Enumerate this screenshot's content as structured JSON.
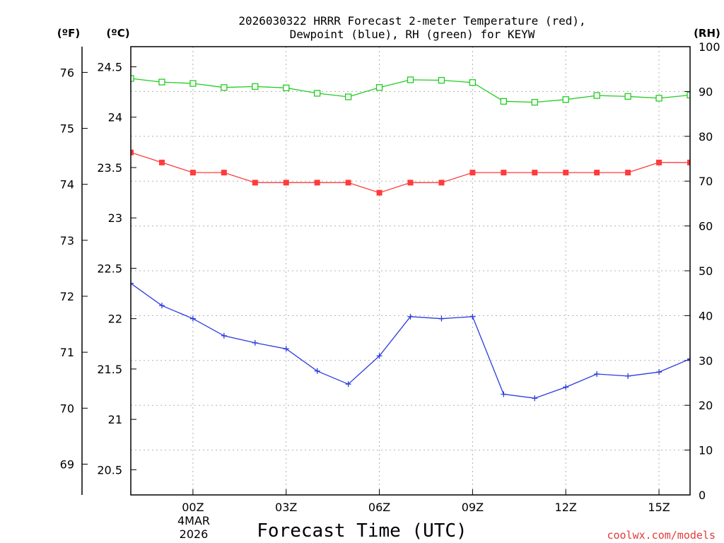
{
  "chart_data": {
    "type": "line",
    "title_line1": "2026030322 HRRR Forecast 2-meter Temperature (red),",
    "title_line2": "Dewpoint (blue), RH (green) for KEYW",
    "unit_f": "(ºF)",
    "unit_c": "(ºC)",
    "unit_rh": "(RH)",
    "xlabel": "Forecast Time (UTC)",
    "watermark": "coolwx.com/models",
    "date_label_day": "4MAR",
    "date_label_year": "2026",
    "x_range": [
      -2,
      16
    ],
    "c_range": [
      20.25,
      24.7
    ],
    "f_range": [
      68.45,
      76.46
    ],
    "rh_range": [
      0,
      100
    ],
    "x_ticks": [
      {
        "x": 0,
        "label": "00Z"
      },
      {
        "x": 3,
        "label": "03Z"
      },
      {
        "x": 6,
        "label": "06Z"
      },
      {
        "x": 9,
        "label": "09Z"
      },
      {
        "x": 12,
        "label": "12Z"
      },
      {
        "x": 15,
        "label": "15Z"
      }
    ],
    "c_ticks": [
      {
        "v": 20.5,
        "label": "20.5"
      },
      {
        "v": 21,
        "label": "21"
      },
      {
        "v": 21.5,
        "label": "21.5"
      },
      {
        "v": 22,
        "label": "22"
      },
      {
        "v": 22.5,
        "label": "22.5"
      },
      {
        "v": 23,
        "label": "23"
      },
      {
        "v": 23.5,
        "label": "23.5"
      },
      {
        "v": 24,
        "label": "24"
      },
      {
        "v": 24.5,
        "label": "24.5"
      }
    ],
    "f_ticks": [
      {
        "v": 69,
        "label": "69"
      },
      {
        "v": 70,
        "label": "70"
      },
      {
        "v": 71,
        "label": "71"
      },
      {
        "v": 72,
        "label": "72"
      },
      {
        "v": 73,
        "label": "73"
      },
      {
        "v": 74,
        "label": "74"
      },
      {
        "v": 75,
        "label": "75"
      },
      {
        "v": 76,
        "label": "76"
      }
    ],
    "rh_ticks": [
      {
        "v": 0,
        "label": "0"
      },
      {
        "v": 10,
        "label": "10"
      },
      {
        "v": 20,
        "label": "20"
      },
      {
        "v": 30,
        "label": "30"
      },
      {
        "v": 40,
        "label": "40"
      },
      {
        "v": 50,
        "label": "50"
      },
      {
        "v": 60,
        "label": "60"
      },
      {
        "v": 70,
        "label": "70"
      },
      {
        "v": 80,
        "label": "80"
      },
      {
        "v": 90,
        "label": "90"
      },
      {
        "v": 100,
        "label": "100"
      }
    ],
    "hours": [
      -2,
      -1,
      0,
      1,
      2,
      3,
      4,
      5,
      6,
      7,
      8,
      9,
      10,
      11,
      12,
      13,
      14,
      15,
      16
    ],
    "series": [
      {
        "name": "Temperature",
        "axis": "c",
        "color": "#ff3b3b",
        "marker": "filled-square",
        "values": [
          23.65,
          23.55,
          23.45,
          23.45,
          23.35,
          23.35,
          23.35,
          23.35,
          23.25,
          23.35,
          23.35,
          23.45,
          23.45,
          23.45,
          23.45,
          23.45,
          23.45,
          23.55,
          23.55
        ]
      },
      {
        "name": "Dewpoint",
        "axis": "c",
        "color": "#2a3bdc",
        "marker": "plus",
        "values": [
          22.35,
          22.13,
          22.0,
          21.83,
          21.76,
          21.7,
          21.48,
          21.35,
          21.63,
          22.02,
          22.0,
          22.02,
          21.25,
          21.21,
          21.32,
          21.45,
          21.43,
          21.47,
          21.6
        ]
      },
      {
        "name": "RH",
        "axis": "rh",
        "color": "#22cc22",
        "marker": "open-square",
        "values": [
          92.9,
          92.1,
          91.8,
          90.9,
          91.1,
          90.8,
          89.6,
          88.8,
          90.9,
          92.6,
          92.5,
          92.0,
          87.8,
          87.6,
          88.2,
          89.1,
          88.9,
          88.5,
          89.2
        ]
      }
    ]
  }
}
